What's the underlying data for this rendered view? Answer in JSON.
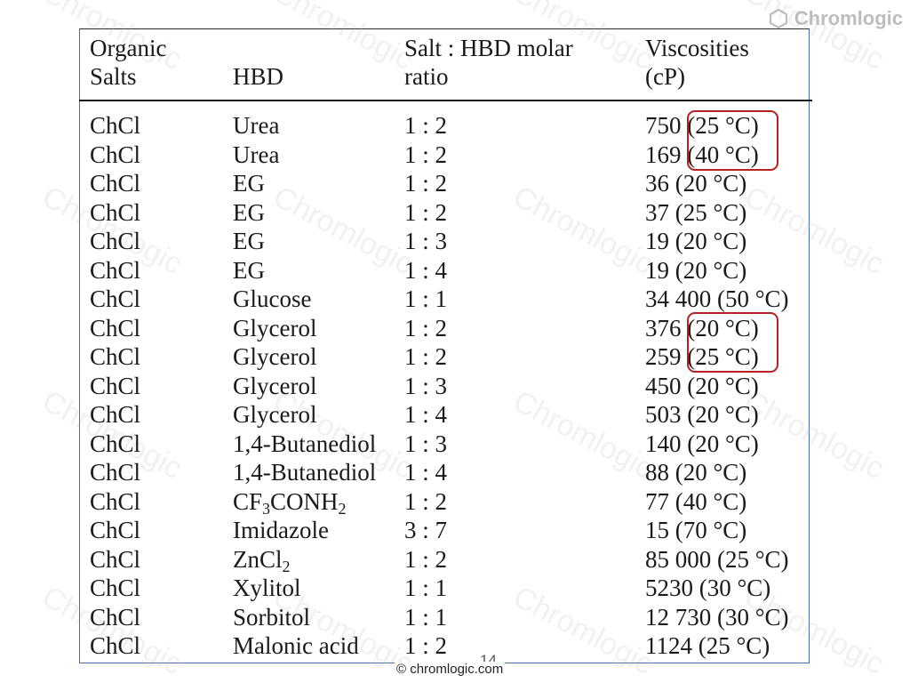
{
  "logo": {
    "text": "Chromlogic"
  },
  "watermark_text": "Chromlogic",
  "table": {
    "headers": {
      "salt": [
        "Organic",
        "Salts"
      ],
      "hbd": [
        "",
        "HBD"
      ],
      "ratio": [
        "Salt : HBD molar",
        "ratio"
      ],
      "visc": [
        "Viscosities",
        "(cP)"
      ]
    },
    "rows": [
      {
        "salt": "ChCl",
        "hbd": "Urea",
        "ratio": "1 : 2",
        "visc": "750 (25 °C)"
      },
      {
        "salt": "ChCl",
        "hbd": "Urea",
        "ratio": "1 : 2",
        "visc": "169 (40 °C)"
      },
      {
        "salt": "ChCl",
        "hbd": "EG",
        "ratio": "1 : 2",
        "visc": "36 (20 °C)"
      },
      {
        "salt": "ChCl",
        "hbd": "EG",
        "ratio": "1 : 2",
        "visc": "37 (25 °C)"
      },
      {
        "salt": "ChCl",
        "hbd": "EG",
        "ratio": "1 : 3",
        "visc": "19 (20 °C)"
      },
      {
        "salt": "ChCl",
        "hbd": "EG",
        "ratio": "1 : 4",
        "visc": "19 (20 °C)"
      },
      {
        "salt": "ChCl",
        "hbd": "Glucose",
        "ratio": "1 : 1",
        "visc": "34 400 (50 °C)"
      },
      {
        "salt": "ChCl",
        "hbd": "Glycerol",
        "ratio": "1 : 2",
        "visc": "376 (20 °C)"
      },
      {
        "salt": "ChCl",
        "hbd": "Glycerol",
        "ratio": "1 : 2",
        "visc": "259 (25 °C)"
      },
      {
        "salt": "ChCl",
        "hbd": "Glycerol",
        "ratio": "1 : 3",
        "visc": "450 (20 °C)"
      },
      {
        "salt": "ChCl",
        "hbd": "Glycerol",
        "ratio": "1 : 4",
        "visc": "503 (20 °C)"
      },
      {
        "salt": "ChCl",
        "hbd": "1,4-Butanediol",
        "ratio": "1 : 3",
        "visc": "140 (20 °C)"
      },
      {
        "salt": "ChCl",
        "hbd": "1,4-Butanediol",
        "ratio": "1 : 4",
        "visc": "88 (20 °C)"
      },
      {
        "salt": "ChCl",
        "hbd_parts": [
          "CF",
          "3",
          "CONH",
          "2"
        ],
        "ratio": "1 : 2",
        "visc": "77 (40 °C)"
      },
      {
        "salt": "ChCl",
        "hbd": "Imidazole",
        "ratio": "3 : 7",
        "visc": "15 (70 °C)"
      },
      {
        "salt": "ChCl",
        "hbd_parts": [
          "ZnCl",
          "2"
        ],
        "ratio": "1 : 2",
        "visc": "85 000 (25 °C)"
      },
      {
        "salt": "ChCl",
        "hbd": "Xylitol",
        "ratio": "1 : 1",
        "visc": "5230 (30 °C)"
      },
      {
        "salt": "ChCl",
        "hbd": "Sorbitol",
        "ratio": "1 : 1",
        "visc": "12 730 (30 °C)"
      },
      {
        "salt": "ChCl",
        "hbd": "Malonic acid",
        "ratio": "1 : 2",
        "visc": "1124 (25 °C)"
      }
    ]
  },
  "footer": {
    "page_number": "14",
    "copyright": "© chromlogic.com"
  },
  "colors": {
    "highlight": "#b22222",
    "frame": "#4a6fa5",
    "text": "#1a1a1a"
  }
}
